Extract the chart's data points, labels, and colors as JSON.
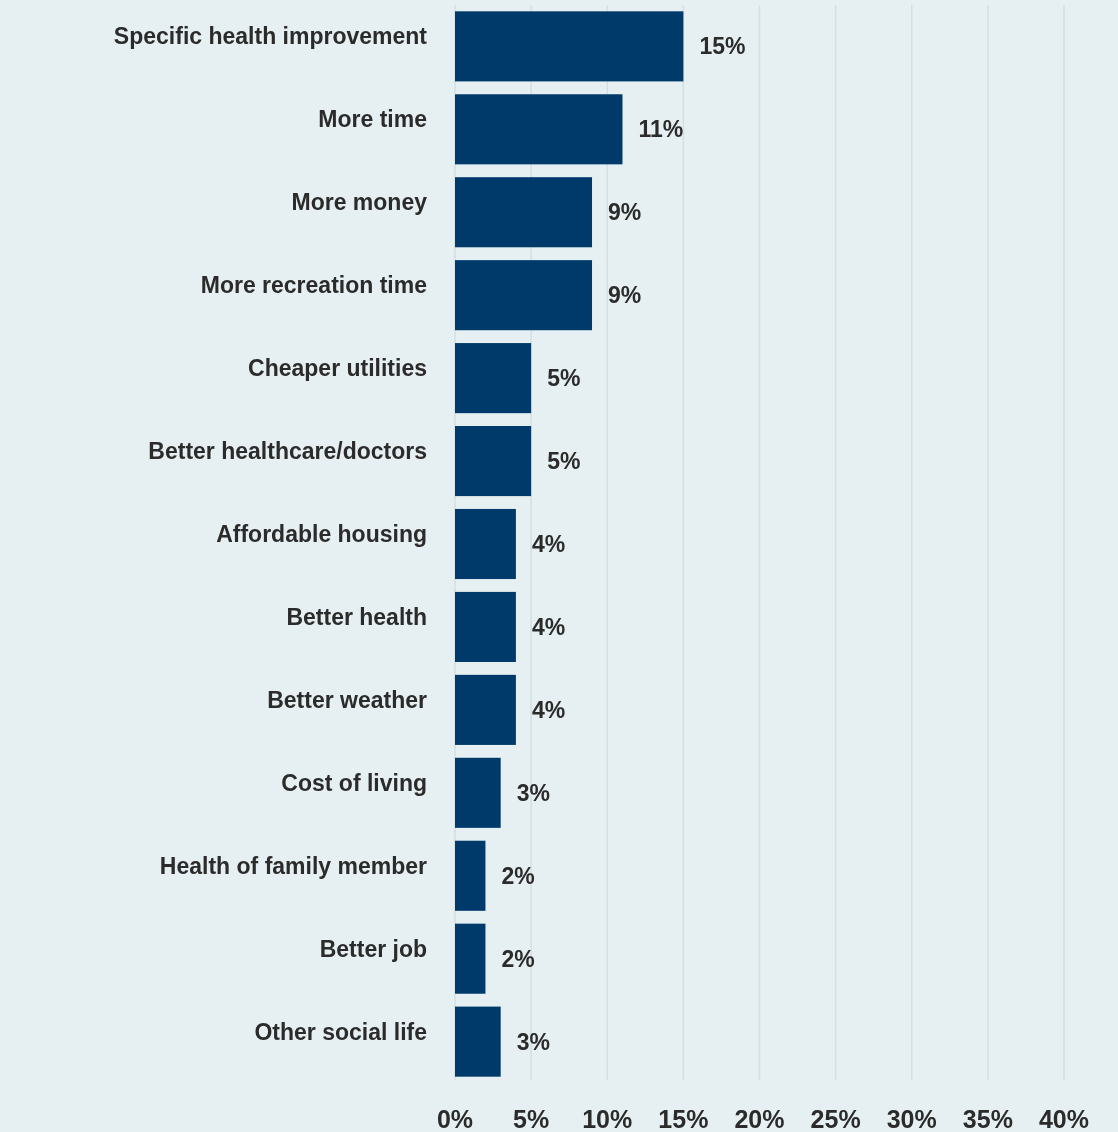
{
  "chart_data": {
    "type": "bar",
    "orientation": "horizontal",
    "categories": [
      "Specific health improvement",
      "More time",
      "More money",
      "More recreation time",
      "Cheaper utilities",
      "Better healthcare/doctors",
      "Affordable housing",
      "Better health",
      "Better weather",
      "Cost of living",
      "Health of family member",
      "Better job",
      "Other social life"
    ],
    "values": [
      15,
      11,
      9,
      9,
      5,
      5,
      4,
      4,
      4,
      3,
      2,
      2,
      3
    ],
    "value_labels": [
      "15%",
      "11%",
      "9%",
      "9%",
      "5%",
      "5%",
      "4%",
      "4%",
      "4%",
      "3%",
      "2%",
      "2%",
      "3%"
    ],
    "color": "#003a6b",
    "xlim": [
      0,
      40
    ],
    "xticks": [
      {
        "value": 0,
        "label": "0%"
      },
      {
        "value": 5,
        "label": "5%"
      },
      {
        "value": 10,
        "label": "10%"
      },
      {
        "value": 15,
        "label": "15%"
      },
      {
        "value": 20,
        "label": "20%"
      },
      {
        "value": 25,
        "label": "25%"
      },
      {
        "value": 30,
        "label": "30%"
      },
      {
        "value": 35,
        "label": "35%"
      },
      {
        "value": 40,
        "label": "40%"
      }
    ],
    "grid": "x"
  }
}
